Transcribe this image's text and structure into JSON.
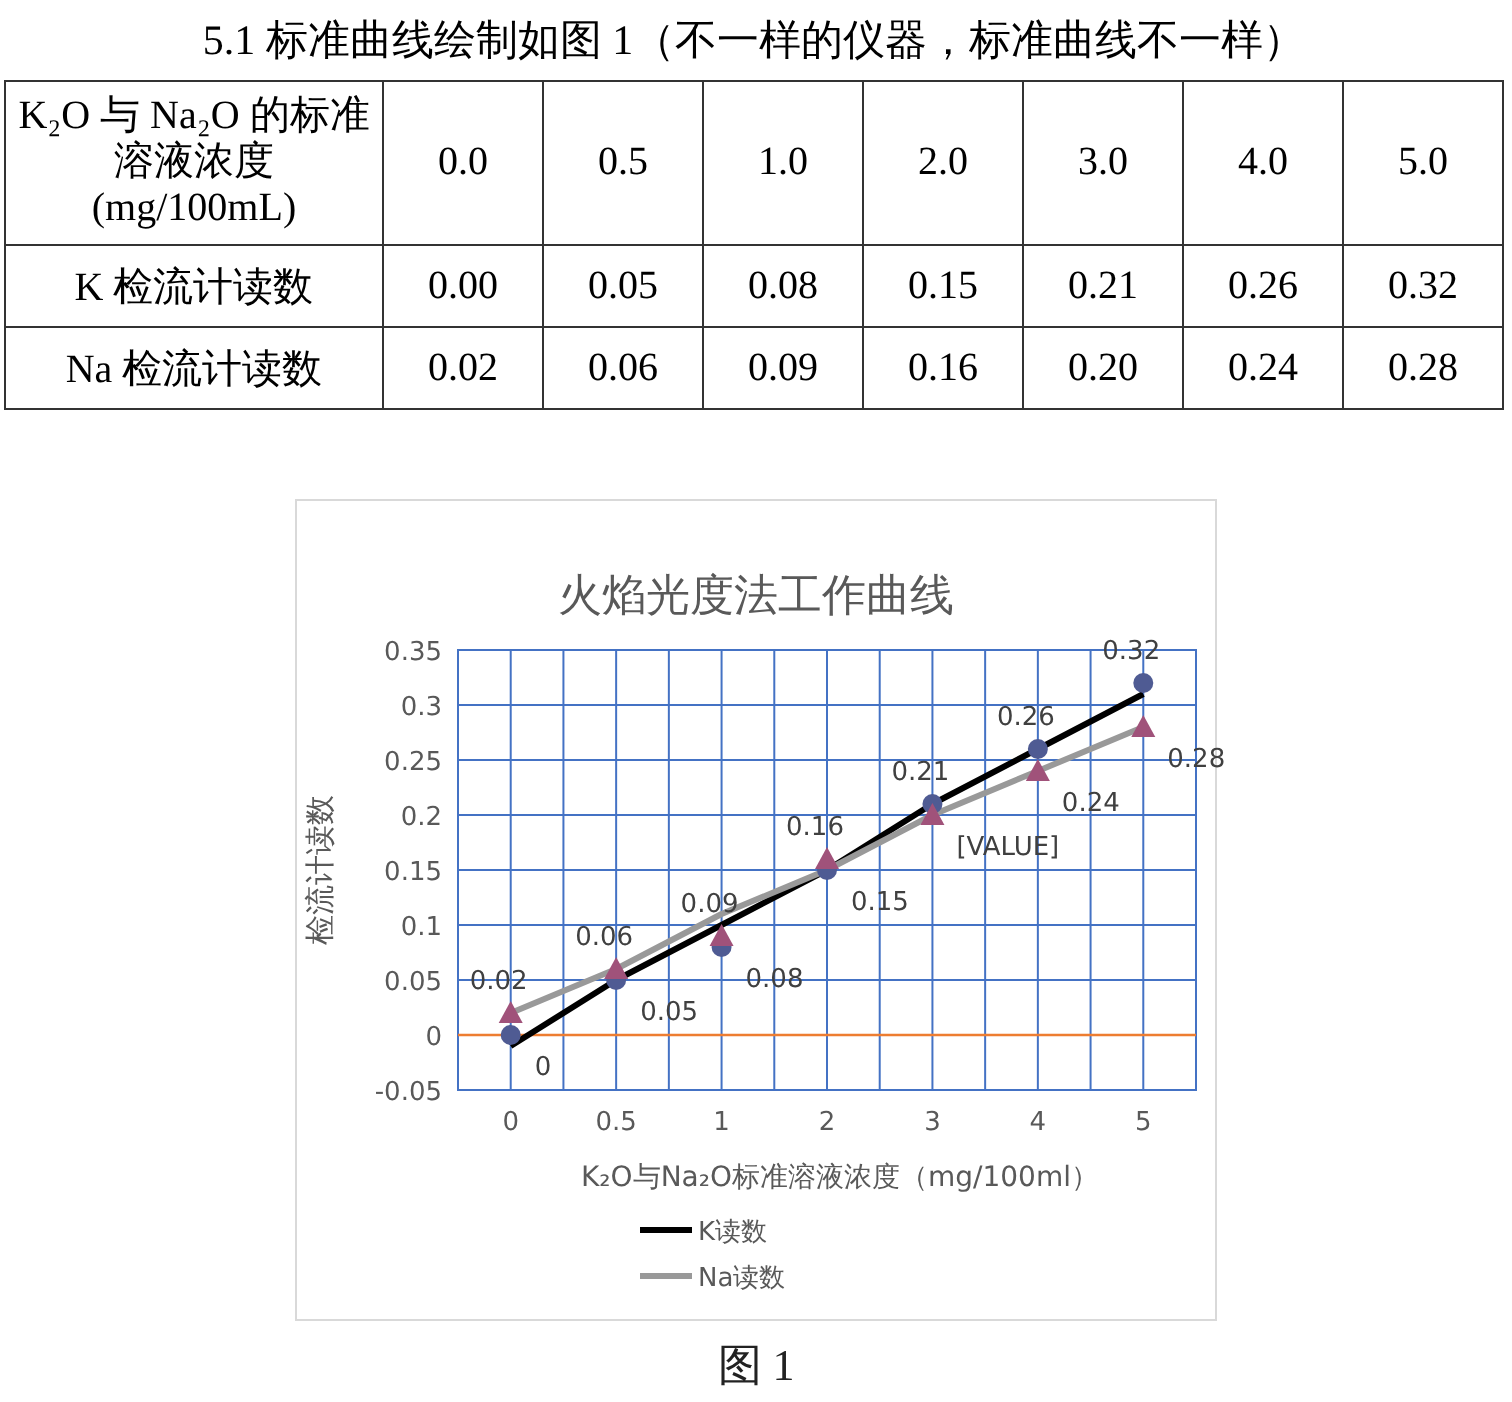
{
  "chart_data": [
    {
      "type": "other",
      "title": "5.1 标准曲线绘制如图 1（不一样的仪器，标准曲线不一样）",
      "annotations": [
        "K₂O 与 Na₂O 的标准溶液浓度 (mg/100mL)",
        "0.0",
        "0.5",
        "1.0",
        "2.0",
        "3.0",
        "4.0",
        "5.0",
        "K 检流计读数",
        "0.00",
        "0.05",
        "0.08",
        "0.15",
        "0.21",
        "0.26",
        "0.32",
        "Na 检流计读数",
        "0.02",
        "0.06",
        "0.09",
        "0.16",
        "0.20",
        "0.24",
        "0.28"
      ]
    },
    {
      "type": "line",
      "title": "火焰光度法工作曲线",
      "xlabel": "K₂O与Na₂O标准溶液浓度（mg/100ml）",
      "ylabel": "检流计读数",
      "categories": [
        "0",
        "0.5",
        "1",
        "2",
        "3",
        "4",
        "5"
      ],
      "series": [
        {
          "type": "scatter",
          "marker": "circle",
          "color": "#4f5b93",
          "values": [
            0,
            0.05,
            0.08,
            0.15,
            0.21,
            0.26,
            0.32
          ],
          "value_labels": [
            "0",
            "0.05",
            "0.08",
            "0.15",
            "0.21",
            "0.26",
            "0.32"
          ]
        },
        {
          "type": "scatter",
          "marker": "triangle",
          "color": "#a0527a",
          "values": [
            0.02,
            0.06,
            0.09,
            0.16,
            0.2,
            0.24,
            0.28
          ],
          "value_labels": [
            "0.02",
            "0.06",
            "0.09",
            "0.16",
            "[VALUE]",
            "0.24",
            "0.28"
          ]
        },
        {
          "type": "line",
          "name": "K读数",
          "color": "#000000",
          "values": [
            -0.01,
            0.05,
            0.1,
            0.15,
            0.21,
            0.26,
            0.31
          ]
        },
        {
          "type": "line",
          "name": "Na读数",
          "color": "#999999",
          "values": [
            0.02,
            0.06,
            0.11,
            0.15,
            0.2,
            0.24,
            0.28
          ]
        }
      ],
      "ylim": [
        -0.05,
        0.35
      ],
      "yticks": [
        -0.05,
        0,
        0.05,
        0.1,
        0.15,
        0.2,
        0.25,
        0.3,
        0.35
      ],
      "grid": true,
      "legend": "bottom",
      "ref_lines": [
        {
          "axis": "y",
          "value": 0,
          "color": "#ed7d31"
        }
      ],
      "annotations": [
        "图 1"
      ]
    }
  ]
}
